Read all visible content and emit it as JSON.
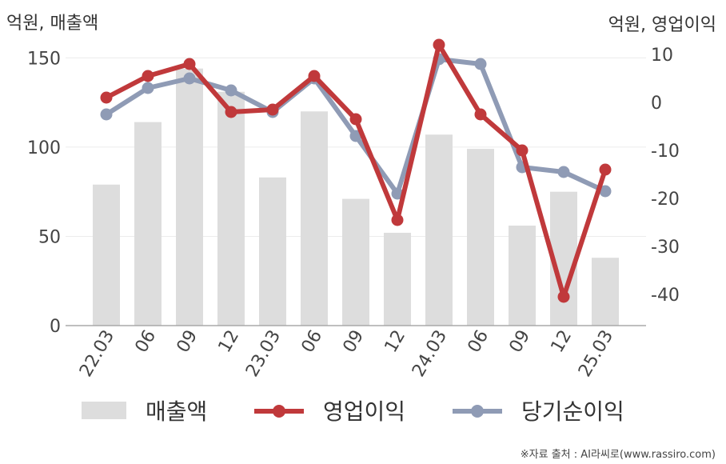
{
  "chart_data": {
    "type": "bar+line",
    "categories": [
      "22.03",
      "06",
      "09",
      "12",
      "23.03",
      "06",
      "09",
      "12",
      "24.03",
      "06",
      "09",
      "12",
      "25.03"
    ],
    "left_axis": {
      "unit_label": "억원, 매출액",
      "ylim": [
        0,
        160
      ],
      "ticks": [
        0,
        50,
        100,
        150
      ]
    },
    "right_axis": {
      "unit_label": "억원, 영업이익",
      "ylim": [
        -46.5,
        13
      ],
      "ticks": [
        10,
        0,
        -10,
        -20,
        -30,
        -40
      ]
    },
    "series": [
      {
        "name": "매출액",
        "type": "bar",
        "axis": "left",
        "color": "#dddddd",
        "values": [
          79,
          114,
          144,
          131,
          83,
          120,
          71,
          52,
          107,
          99,
          56,
          75,
          38
        ]
      },
      {
        "name": "영업이익",
        "type": "line",
        "axis": "right",
        "color": "#c0393b",
        "values": [
          1,
          5.5,
          8,
          -2,
          -1.5,
          5.5,
          -3.5,
          -24.5,
          12,
          -2.5,
          -10,
          -40.5,
          -14
        ]
      },
      {
        "name": "당기순이익",
        "type": "line",
        "axis": "right",
        "color": "#8f9bb5",
        "values": [
          -2.5,
          3,
          5,
          2.5,
          -2,
          5,
          -7,
          -19,
          9,
          8,
          -13.5,
          -14.5,
          -18.5
        ]
      }
    ],
    "grid": true,
    "legend_position": "bottom"
  },
  "footer": {
    "source": "※자료 출처 : AI라씨로(www.rassiro.com)"
  }
}
